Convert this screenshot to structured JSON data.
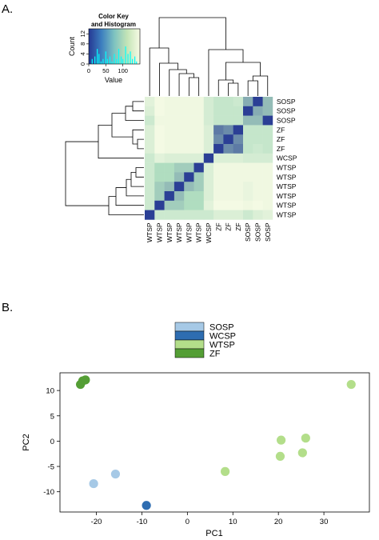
{
  "panels": {
    "a_label": "A.",
    "b_label": "B."
  },
  "chart_data": [
    {
      "type": "heatmap",
      "row_labels": [
        "SOSP",
        "SOSP",
        "SOSP",
        "ZF",
        "ZF",
        "ZF",
        "WCSP",
        "WTSP",
        "WTSP",
        "WTSP",
        "WTSP",
        "WTSP",
        "WTSP"
      ],
      "col_labels": [
        "WTSP",
        "WTSP",
        "WTSP",
        "WTSP",
        "WTSP",
        "WTSP",
        "WCSP",
        "ZF",
        "ZF",
        "ZF",
        "SOSP",
        "SOSP",
        "SOSP"
      ],
      "values": [
        [
          0.15,
          0.02,
          0.05,
          0.05,
          0.05,
          0.05,
          0.25,
          0.35,
          0.35,
          0.3,
          0.65,
          0.98,
          0.6
        ],
        [
          0.2,
          0.02,
          0.05,
          0.05,
          0.05,
          0.05,
          0.25,
          0.35,
          0.35,
          0.35,
          0.98,
          0.65,
          0.6
        ],
        [
          0.3,
          0.05,
          0.05,
          0.05,
          0.05,
          0.05,
          0.25,
          0.35,
          0.35,
          0.35,
          0.6,
          0.6,
          0.98
        ],
        [
          0.2,
          0.02,
          0.05,
          0.05,
          0.05,
          0.05,
          0.2,
          0.8,
          0.75,
          0.98,
          0.35,
          0.35,
          0.35
        ],
        [
          0.2,
          0.02,
          0.05,
          0.05,
          0.05,
          0.05,
          0.2,
          0.75,
          0.98,
          0.75,
          0.35,
          0.35,
          0.35
        ],
        [
          0.2,
          0.02,
          0.05,
          0.05,
          0.05,
          0.05,
          0.2,
          0.98,
          0.75,
          0.8,
          0.35,
          0.3,
          0.35
        ],
        [
          0.3,
          0.15,
          0.2,
          0.2,
          0.2,
          0.2,
          0.98,
          0.2,
          0.2,
          0.2,
          0.25,
          0.25,
          0.25
        ],
        [
          0.3,
          0.5,
          0.5,
          0.55,
          0.55,
          0.98,
          0.2,
          0.05,
          0.05,
          0.05,
          0.05,
          0.05,
          0.05
        ],
        [
          0.3,
          0.5,
          0.5,
          0.6,
          0.98,
          0.55,
          0.2,
          0.05,
          0.05,
          0.05,
          0.05,
          0.05,
          0.05
        ],
        [
          0.3,
          0.55,
          0.6,
          0.98,
          0.6,
          0.55,
          0.2,
          0.05,
          0.05,
          0.05,
          0.1,
          0.05,
          0.05
        ],
        [
          0.3,
          0.55,
          0.98,
          0.6,
          0.5,
          0.5,
          0.2,
          0.05,
          0.05,
          0.05,
          0.1,
          0.05,
          0.05
        ],
        [
          0.3,
          0.98,
          0.55,
          0.55,
          0.5,
          0.5,
          0.15,
          0.02,
          0.02,
          0.02,
          0.05,
          0.02,
          0.05
        ],
        [
          0.98,
          0.3,
          0.3,
          0.3,
          0.3,
          0.3,
          0.3,
          0.2,
          0.2,
          0.2,
          0.3,
          0.2,
          0.15
        ]
      ],
      "color_key": {
        "title": "Color Key\nand Histogram",
        "ylabel": "Count",
        "xlabel": "Value",
        "x_ticks": [
          "0",
          "50",
          "100"
        ],
        "y_ticks": [
          "0",
          "4",
          "8",
          "12"
        ],
        "xlim": [
          0,
          150
        ],
        "ylim": [
          0,
          14
        ],
        "histogram": [
          {
            "x": 10,
            "count": 2
          },
          {
            "x": 18,
            "count": 3
          },
          {
            "x": 25,
            "count": 6
          },
          {
            "x": 30,
            "count": 4
          },
          {
            "x": 36,
            "count": 1
          },
          {
            "x": 42,
            "count": 2
          },
          {
            "x": 50,
            "count": 5
          },
          {
            "x": 55,
            "count": 2
          },
          {
            "x": 62,
            "count": 3
          },
          {
            "x": 68,
            "count": 1
          },
          {
            "x": 75,
            "count": 4
          },
          {
            "x": 82,
            "count": 2
          },
          {
            "x": 88,
            "count": 6
          },
          {
            "x": 95,
            "count": 3
          },
          {
            "x": 100,
            "count": 2
          },
          {
            "x": 108,
            "count": 7
          },
          {
            "x": 115,
            "count": 4
          },
          {
            "x": 122,
            "count": 5
          },
          {
            "x": 128,
            "count": 2
          },
          {
            "x": 135,
            "count": 3
          },
          {
            "x": 140,
            "count": 1
          }
        ]
      },
      "colors": {
        "low": "#f7fbe5",
        "mid": "#b0ddc0",
        "high": "#253893"
      }
    },
    {
      "type": "scatter",
      "xlabel": "PC1",
      "ylabel": "PC2",
      "xlim": [
        -28,
        40
      ],
      "ylim": [
        -14,
        13.5
      ],
      "x_ticks": [
        -20,
        -10,
        0,
        10,
        20,
        30
      ],
      "y_ticks": [
        -10,
        -5,
        0,
        5,
        10
      ],
      "legend": {
        "placement": "top-center",
        "entries": [
          {
            "name": "SOSP",
            "color": "#a6c9e6"
          },
          {
            "name": "WCSP",
            "color": "#2e6db1"
          },
          {
            "name": "WTSP",
            "color": "#b3de8a"
          },
          {
            "name": "ZF",
            "color": "#549e35"
          }
        ]
      },
      "points": [
        {
          "group": "ZF",
          "x": -23.5,
          "y": 11.2
        },
        {
          "group": "ZF",
          "x": -23.0,
          "y": 11.9
        },
        {
          "group": "ZF",
          "x": -22.4,
          "y": 12.1
        },
        {
          "group": "SOSP",
          "x": -20.6,
          "y": -8.4
        },
        {
          "group": "SOSP",
          "x": -15.8,
          "y": -6.5
        },
        {
          "group": "WCSP",
          "x": -9.0,
          "y": -12.7
        },
        {
          "group": "WTSP",
          "x": 8.3,
          "y": -6.0
        },
        {
          "group": "WTSP",
          "x": 20.6,
          "y": 0.2
        },
        {
          "group": "WTSP",
          "x": 20.4,
          "y": -3.0
        },
        {
          "group": "WTSP",
          "x": 26.0,
          "y": 0.6
        },
        {
          "group": "WTSP",
          "x": 25.3,
          "y": -2.3
        },
        {
          "group": "WTSP",
          "x": 36.0,
          "y": 11.2
        }
      ]
    }
  ]
}
